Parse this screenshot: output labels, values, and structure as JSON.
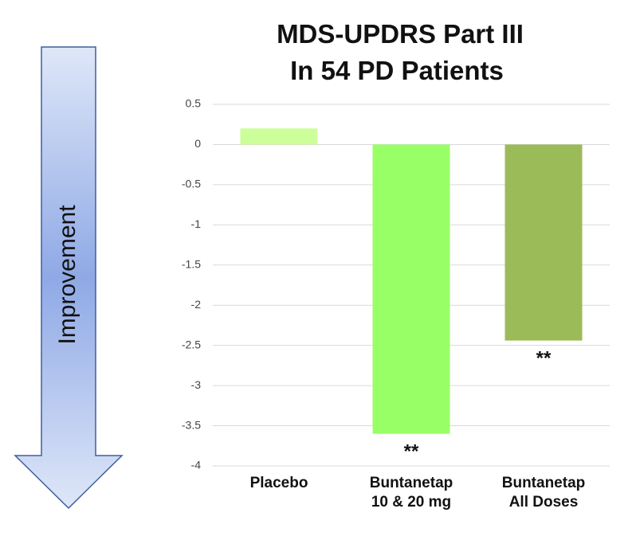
{
  "arrow": {
    "label": "Improvement"
  },
  "colors": {
    "arrow_gradient_edge": "#dfe7f8",
    "arrow_gradient_center": "#8fa9e6",
    "arrow_stroke": "#3f5f9f",
    "grid": "#d9d9d9"
  },
  "chart_data": {
    "type": "bar",
    "title": [
      "MDS-UPDRS Part III",
      "In 54 PD Patients"
    ],
    "xlabel": "",
    "ylabel": "",
    "ylim": [
      -4,
      0.5
    ],
    "yticks": [
      0.5,
      0,
      -0.5,
      -1,
      -1.5,
      -2,
      -2.5,
      -3,
      -3.5,
      -4
    ],
    "ytick_labels": [
      "0.5",
      "0",
      "-0.5",
      "-1",
      "-1.5",
      "-2",
      "-2.5",
      "-3",
      "-3.5",
      "-4"
    ],
    "grid": true,
    "legend": "none",
    "categories": [
      [
        "Placebo"
      ],
      [
        "Buntanetap",
        "10 & 20 mg"
      ],
      [
        "Buntanetap",
        "All Doses"
      ]
    ],
    "values": [
      0.2,
      -3.6,
      -2.44
    ],
    "bar_colors": [
      "#ccff99",
      "#99ff66",
      "#9bbb59"
    ],
    "annotations": [
      "",
      "**",
      "**"
    ]
  }
}
